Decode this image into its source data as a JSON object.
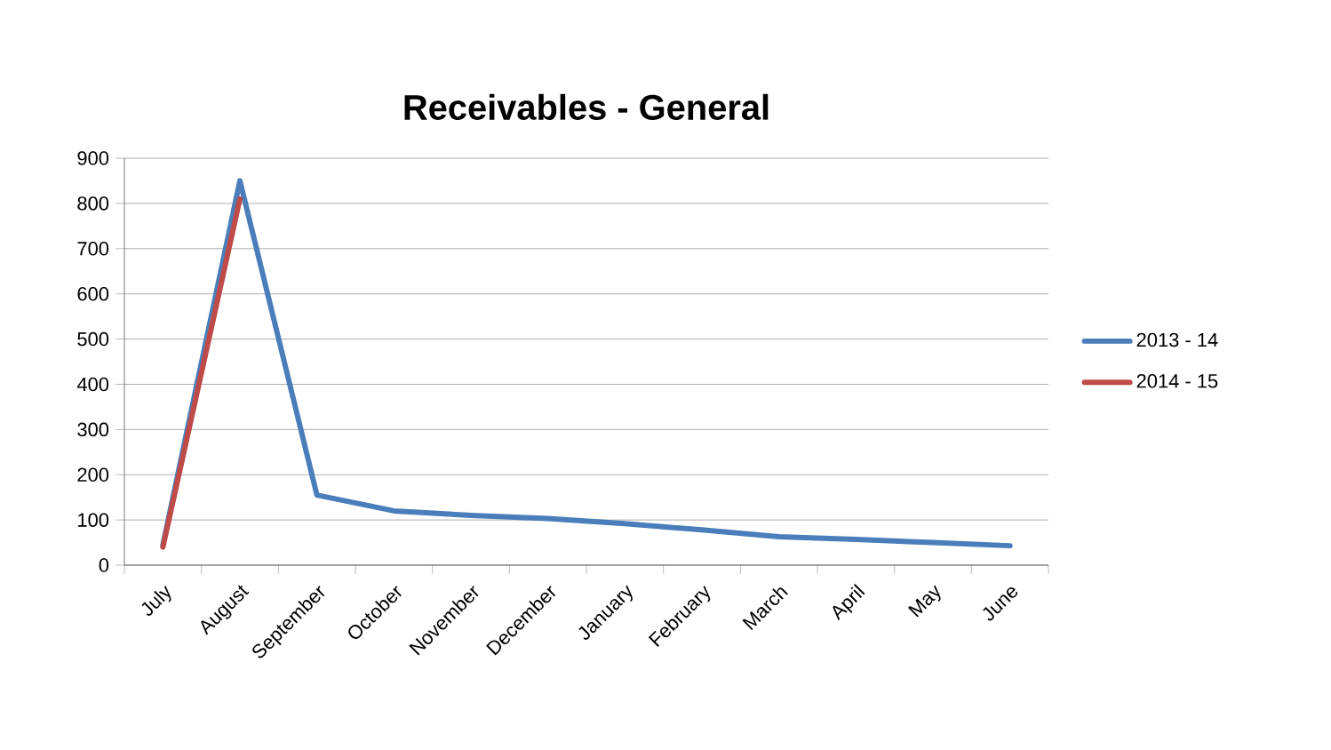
{
  "chart_data": {
    "type": "line",
    "title": "Receivables - General",
    "categories": [
      "July",
      "August",
      "September",
      "October",
      "November",
      "December",
      "January",
      "February",
      "March",
      "April",
      "May",
      "June"
    ],
    "series": [
      {
        "name": "2013 - 14",
        "color": "#4a7ebb",
        "values": [
          45,
          850,
          155,
          120,
          110,
          103,
          92,
          78,
          63,
          57,
          50,
          43
        ]
      },
      {
        "name": "2014 - 15",
        "color": "#be4b48",
        "values": [
          40,
          810,
          null,
          null,
          null,
          null,
          null,
          null,
          null,
          null,
          null,
          null
        ]
      }
    ],
    "ylim": [
      0,
      900
    ],
    "yticks": [
      0,
      100,
      200,
      300,
      400,
      500,
      600,
      700,
      800,
      900
    ],
    "grid": "y",
    "legend": "right",
    "marker": "none",
    "line_style": "solid"
  }
}
